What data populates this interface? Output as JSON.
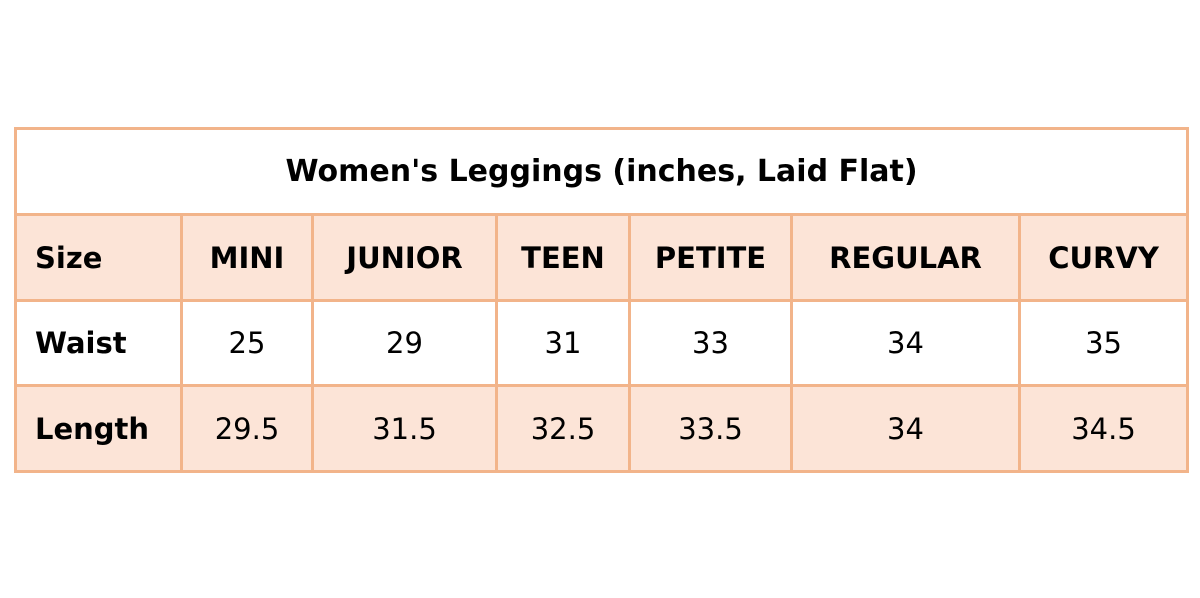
{
  "title": "Women's Leggings (inches, Laid Flat)",
  "header": {
    "label": "Size",
    "sizes": [
      "MINI",
      "JUNIOR",
      "TEEN",
      "PETITE",
      "REGULAR",
      "CURVY"
    ]
  },
  "rows": [
    {
      "label": "Waist",
      "values": [
        "25",
        "29",
        "31",
        "33",
        "34",
        "35"
      ]
    },
    {
      "label": "Length",
      "values": [
        "29.5",
        "31.5",
        "32.5",
        "33.5",
        "34",
        "34.5"
      ]
    }
  ],
  "colors": {
    "border": "#f2b48a",
    "shaded_row": "#fce4d7",
    "plain_row": "#ffffff"
  }
}
